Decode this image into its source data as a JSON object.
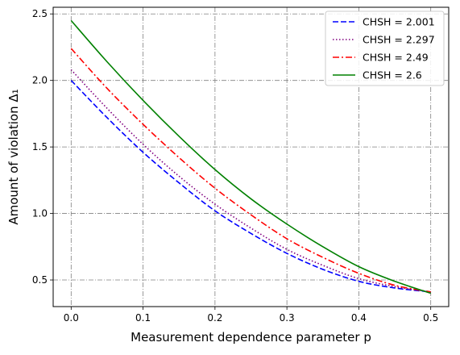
{
  "chart_data": {
    "type": "line",
    "title": "",
    "xlabel": "Measurement dependence parameter p",
    "ylabel": "Amount of violation Δ₁",
    "xlim": [
      -0.025,
      0.525
    ],
    "ylim": [
      0.3,
      2.55
    ],
    "xticks": [
      0.0,
      0.1,
      0.2,
      0.3,
      0.4,
      0.5
    ],
    "xtick_labels": [
      "0.0",
      "0.1",
      "0.2",
      "0.3",
      "0.4",
      "0.5"
    ],
    "yticks": [
      0.5,
      1.0,
      1.5,
      2.0,
      2.5
    ],
    "ytick_labels": [
      "0.5",
      "1.0",
      "1.5",
      "2.0",
      "2.5"
    ],
    "grid": true,
    "legend_position": "top-right",
    "x": [
      0.0,
      0.05,
      0.1,
      0.15,
      0.2,
      0.25,
      0.3,
      0.35,
      0.4,
      0.45,
      0.5
    ],
    "series": [
      {
        "name": "CHSH = 2.001",
        "color": "#0000ff",
        "linestyle": "dashed",
        "values": [
          2.0,
          1.72,
          1.46,
          1.23,
          1.02,
          0.85,
          0.7,
          0.58,
          0.49,
          0.44,
          0.41
        ]
      },
      {
        "name": "CHSH = 2.297",
        "color": "#800080",
        "linestyle": "dotted",
        "values": [
          2.08,
          1.79,
          1.52,
          1.28,
          1.07,
          0.89,
          0.73,
          0.61,
          0.51,
          0.45,
          0.41
        ]
      },
      {
        "name": "CHSH = 2.49",
        "color": "#ff0000",
        "linestyle": "dashdot",
        "values": [
          2.24,
          1.94,
          1.67,
          1.42,
          1.19,
          0.99,
          0.81,
          0.67,
          0.55,
          0.46,
          0.41
        ]
      },
      {
        "name": "CHSH = 2.6",
        "color": "#008000",
        "linestyle": "solid",
        "values": [
          2.45,
          2.14,
          1.85,
          1.58,
          1.33,
          1.11,
          0.92,
          0.75,
          0.6,
          0.49,
          0.4
        ]
      }
    ]
  }
}
